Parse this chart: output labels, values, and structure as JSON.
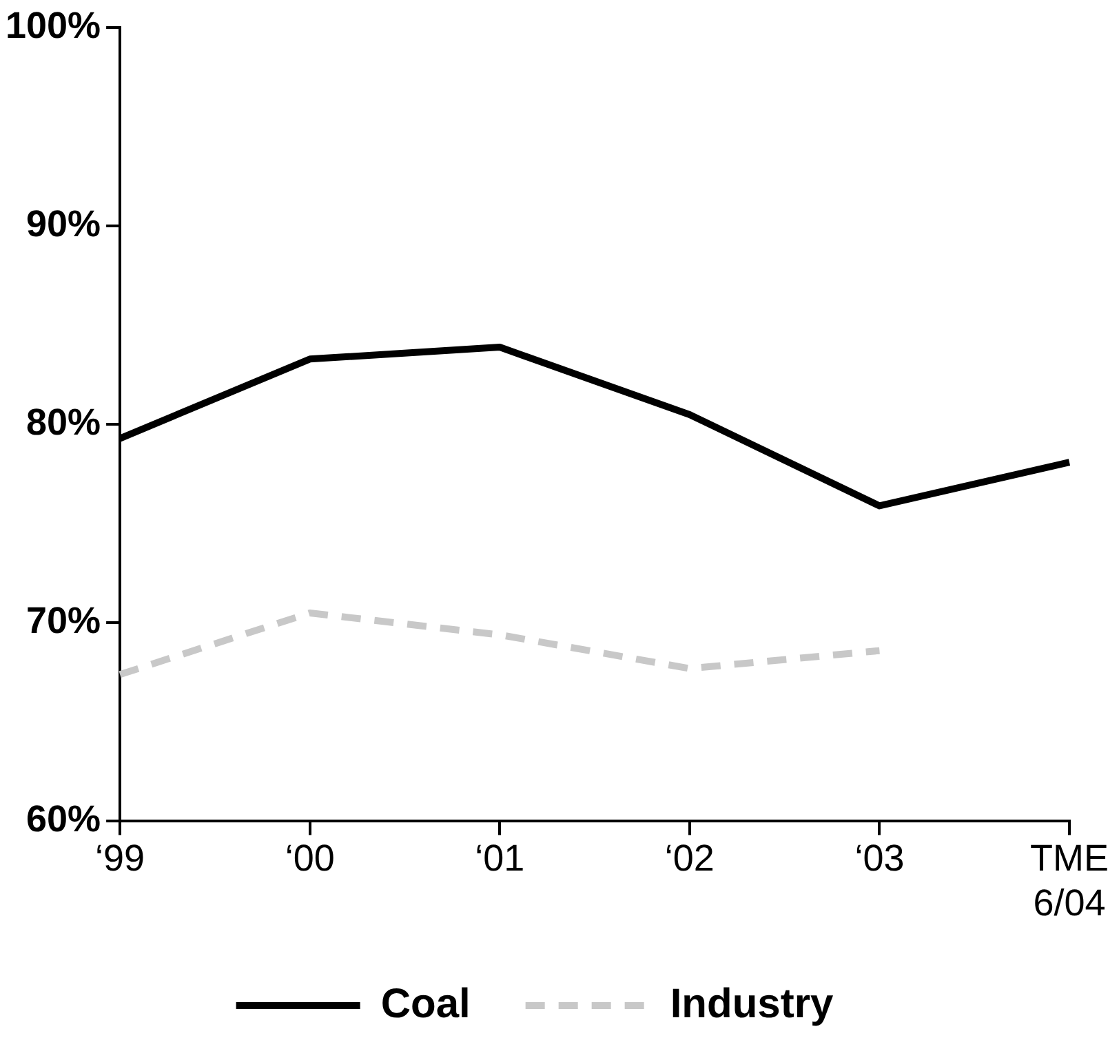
{
  "chart_data": {
    "type": "line",
    "categories": [
      "‘99",
      "‘00",
      "‘01",
      "‘02",
      "‘03",
      "TME\n6/04"
    ],
    "series": [
      {
        "name": "Coal",
        "color": "#000000",
        "values": [
          79.3,
          83.3,
          83.9,
          80.5,
          75.9,
          78.1
        ],
        "line_style": "solid"
      },
      {
        "name": "Industry",
        "color": "#c8c8c8",
        "values": [
          67.4,
          70.5,
          69.4,
          67.7,
          68.6,
          null
        ],
        "line_style": "dashed"
      }
    ],
    "ylim": [
      60,
      100
    ],
    "yticks": [
      {
        "value": 60,
        "label": "60%"
      },
      {
        "value": 70,
        "label": "70%"
      },
      {
        "value": 80,
        "label": "80%"
      },
      {
        "value": 90,
        "label": "90%"
      },
      {
        "value": 100,
        "label": "100%"
      }
    ],
    "grid": false,
    "legend": "bottom",
    "marker": "none"
  }
}
